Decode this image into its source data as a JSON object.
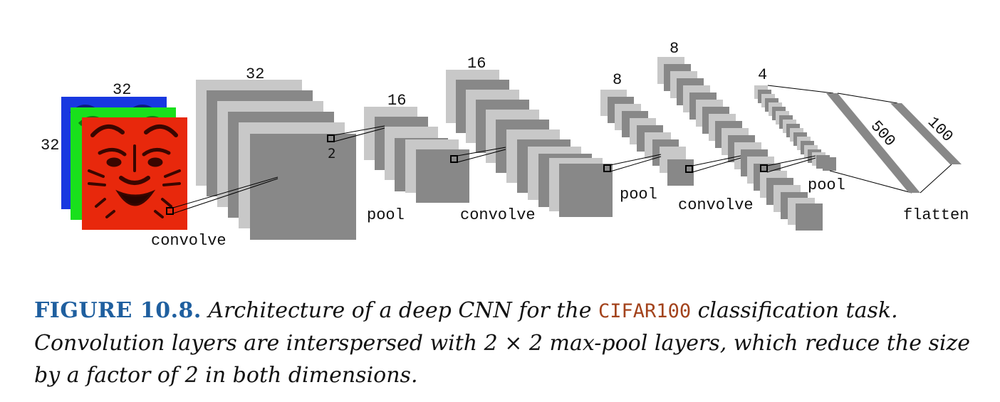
{
  "diagram": {
    "input_sizes": {
      "top": "32",
      "left": "32"
    },
    "conv1_size": "32",
    "kernel_label": "2",
    "pool1_size": "16",
    "conv2_size": "16",
    "pool2_size": "8",
    "conv3_size": "8",
    "pool3_size": "4",
    "dense1_size": "500",
    "dense2_size": "100",
    "labels": {
      "convolve_1": "convolve",
      "pool_1": "pool",
      "convolve_2": "convolve",
      "pool_2": "pool",
      "convolve_3": "convolve",
      "pool_3": "pool",
      "flatten": "flatten"
    },
    "colors": {
      "light_gray": "#c8c8c8",
      "dark_gray": "#888888",
      "input_red": "#e8280c",
      "input_green": "#19e01c",
      "input_blue": "#1838e0"
    }
  },
  "caption": {
    "label": "FIGURE 10.8.",
    "text_1": " Architecture of a deep CNN for the ",
    "dataset": "CIFAR100",
    "text_2": " classification task. Convolution layers are interspersed with 2 × 2 max-pool layers, which reduce the size by a factor of 2 in both dimensions."
  }
}
